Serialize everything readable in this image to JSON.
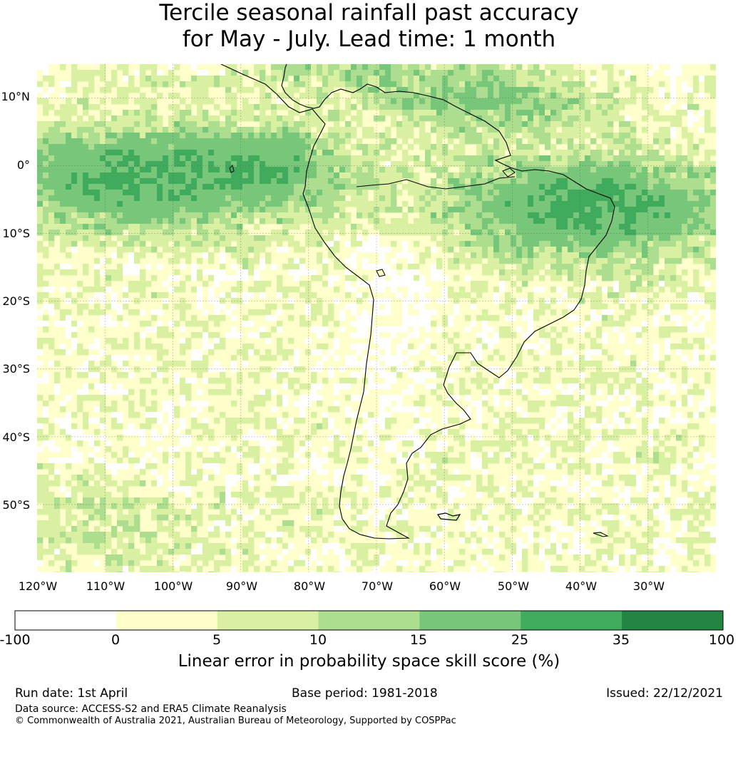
{
  "title": {
    "line1": "Tercile seasonal rainfall past accuracy",
    "line2": "for May - July. Lead time: 1 month"
  },
  "map": {
    "latitude_labels": [
      "10°N",
      "0°",
      "10°S",
      "20°S",
      "30°S",
      "40°S",
      "50°S"
    ],
    "longitude_labels": [
      "120°W",
      "110°W",
      "100°W",
      "90°W",
      "80°W",
      "70°W",
      "60°W",
      "50°W",
      "40°W",
      "30°W"
    ],
    "extent": {
      "lon_min": -120,
      "lon_max": -20,
      "lat_min": -60,
      "lat_max": 15
    },
    "coastline_color": "#000000",
    "gridlines": true
  },
  "legend": {
    "boundaries": [
      "-100",
      "0",
      "5",
      "10",
      "15",
      "25",
      "35",
      "100"
    ],
    "colors": [
      "#ffffff",
      "#ffffcc",
      "#d9f0a3",
      "#addd8e",
      "#78c679",
      "#41ab5d",
      "#238443"
    ],
    "label": "Linear error in probability space skill score (%)"
  },
  "footer": {
    "run_date": "Run date: 1st April",
    "base_period": "Base period: 1981-2018",
    "issued": "Issued: 22/12/2021",
    "data_source": "Data source: ACCESS-S2 and ERA5 Climate Reanalysis",
    "copyright": "© Commonwealth of Australia 2021, Australian Bureau of Meteorology, Supported by COSPPac"
  }
}
